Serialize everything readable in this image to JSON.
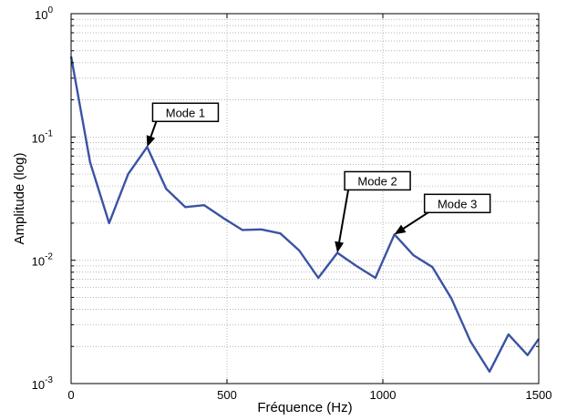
{
  "chart_data": {
    "type": "line",
    "title": "",
    "xlabel": "Fréquence (Hz)",
    "ylabel": "Amplitude (log)",
    "xlim": [
      0,
      1500
    ],
    "ylim": [
      0.001,
      1
    ],
    "yscale": "log",
    "grid": true,
    "grid_style": "dotted",
    "line_color": "#3a53a4",
    "x_ticks": [
      {
        "value": 0,
        "label": "0"
      },
      {
        "value": 500,
        "label": "500"
      },
      {
        "value": 1000,
        "label": "1000"
      },
      {
        "value": 1500,
        "label": "1500"
      }
    ],
    "y_ticks": [
      {
        "value": 1,
        "base": "10",
        "exp": "0"
      },
      {
        "value": 0.1,
        "base": "10",
        "exp": "-1"
      },
      {
        "value": 0.01,
        "base": "10",
        "exp": "-2"
      },
      {
        "value": 0.001,
        "base": "10",
        "exp": "-3"
      }
    ],
    "series": [
      {
        "x": [
          0,
          61,
          122,
          183,
          244,
          305,
          366,
          427,
          488,
          549,
          610,
          671,
          732,
          793,
          854,
          915,
          976,
          1037,
          1098,
          1159,
          1220,
          1281,
          1342,
          1403,
          1464,
          1500
        ],
        "y": [
          0.45,
          0.062,
          0.02,
          0.05,
          0.083,
          0.038,
          0.027,
          0.028,
          0.022,
          0.0176,
          0.0178,
          0.0165,
          0.012,
          0.0072,
          0.0115,
          0.009,
          0.0072,
          0.0162,
          0.011,
          0.0088,
          0.0049,
          0.0022,
          0.00125,
          0.0025,
          0.0017,
          0.0023
        ]
      }
    ],
    "annotations": [
      {
        "label": "Mode 1",
        "point_x": 244,
        "point_y": 0.083
      },
      {
        "label": "Mode 2",
        "point_x": 854,
        "point_y": 0.0115
      },
      {
        "label": "Mode 3",
        "point_x": 1037,
        "point_y": 0.0162
      }
    ]
  }
}
